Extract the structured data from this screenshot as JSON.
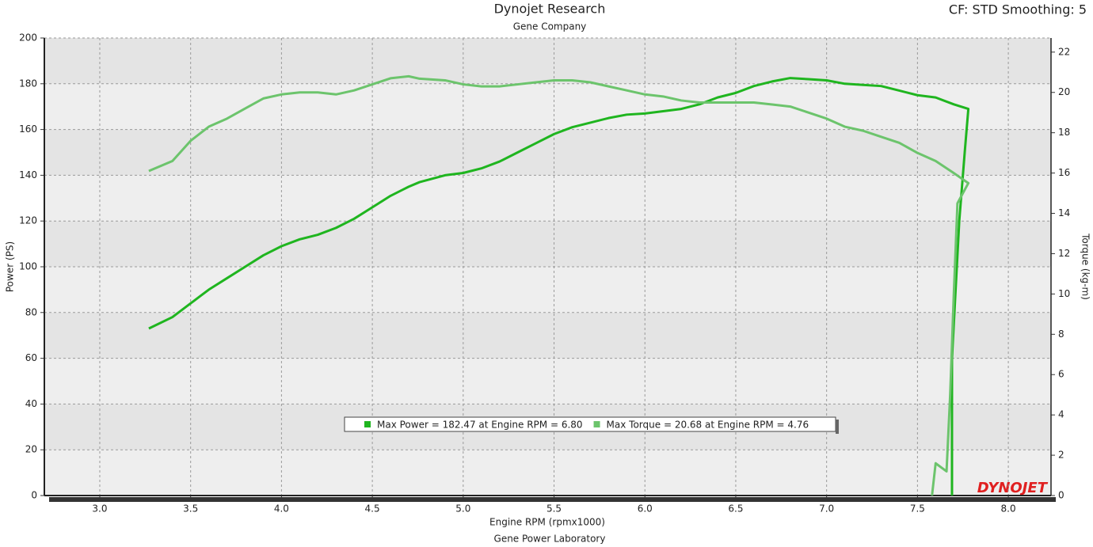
{
  "chart_data": {
    "type": "line",
    "title": "Dynojet Research",
    "subtitle": "Gene Company",
    "corner_text": "CF: STD Smoothing: 5",
    "xlabel": "Engine RPM (rpmx1000)",
    "footer": "Gene Power Laboratory",
    "ylabel": "Power (PS)",
    "y2label": "Torque (kg-m)",
    "logo": "DYNOJET",
    "xlim": [
      2.695,
      8.235
    ],
    "xticks": [
      {
        "value": 3,
        "label": "3.0"
      },
      {
        "value": 3.5,
        "label": "3.5"
      },
      {
        "value": 4,
        "label": "4.0"
      },
      {
        "value": 4.5,
        "label": "4.5"
      },
      {
        "value": 5,
        "label": "5.0"
      },
      {
        "value": 5.5,
        "label": "5.5"
      },
      {
        "value": 6,
        "label": "6.0"
      },
      {
        "value": 6.5,
        "label": "6.5"
      },
      {
        "value": 7,
        "label": "7.0"
      },
      {
        "value": 7.5,
        "label": "7.5"
      },
      {
        "value": 8,
        "label": "8.0"
      }
    ],
    "ylim": [
      0,
      200
    ],
    "yticks": [
      0,
      20,
      40,
      60,
      80,
      100,
      120,
      140,
      160,
      180,
      200
    ],
    "y2lim": [
      0,
      22.7
    ],
    "y2ticks": [
      0,
      2,
      4,
      6,
      8,
      10,
      12,
      14,
      16,
      18,
      20,
      22
    ],
    "grid": true,
    "series": [
      {
        "name": "Max Power = 182.47 at Engine RPM = 6.80",
        "color": "#1fb51f",
        "x": [
          3.27,
          3.4,
          3.5,
          3.6,
          3.7,
          3.8,
          3.9,
          4.0,
          4.1,
          4.2,
          4.3,
          4.4,
          4.5,
          4.6,
          4.7,
          4.76,
          4.9,
          5.0,
          5.1,
          5.2,
          5.3,
          5.4,
          5.5,
          5.6,
          5.7,
          5.8,
          5.9,
          6.0,
          6.1,
          6.2,
          6.3,
          6.4,
          6.5,
          6.6,
          6.7,
          6.8,
          6.9,
          7.0,
          7.1,
          7.2,
          7.3,
          7.4,
          7.5,
          7.6,
          7.7,
          7.78,
          7.76,
          7.73,
          7.71,
          7.69,
          7.69,
          7.69
        ],
        "values": [
          73,
          78,
          84,
          90,
          95,
          100,
          105,
          109,
          112,
          114,
          117,
          121,
          126,
          131,
          135,
          137,
          140,
          141,
          143,
          146,
          150,
          154,
          158,
          161,
          163,
          165,
          166.5,
          167,
          168,
          169,
          171,
          174,
          176,
          179,
          181,
          182.5,
          182,
          181.5,
          180,
          179.5,
          179,
          177,
          175,
          174,
          171,
          169,
          150,
          120,
          90,
          60,
          30,
          0
        ]
      },
      {
        "name": "Max Torque = 20.68 at Engine RPM = 4.76",
        "color": "#6cc46c",
        "axis": "y2",
        "x": [
          3.27,
          3.4,
          3.5,
          3.6,
          3.7,
          3.8,
          3.9,
          4.0,
          4.1,
          4.2,
          4.3,
          4.4,
          4.5,
          4.6,
          4.7,
          4.76,
          4.9,
          5.0,
          5.1,
          5.2,
          5.3,
          5.4,
          5.5,
          5.6,
          5.7,
          5.8,
          5.9,
          6.0,
          6.1,
          6.2,
          6.3,
          6.4,
          6.5,
          6.6,
          6.7,
          6.8,
          6.9,
          7.0,
          7.1,
          7.2,
          7.3,
          7.4,
          7.5,
          7.6,
          7.7,
          7.78,
          7.72,
          7.7,
          7.68,
          7.66,
          7.6,
          7.58
        ],
        "values": [
          16.1,
          16.6,
          17.6,
          18.3,
          18.7,
          19.2,
          19.7,
          19.9,
          20.0,
          20.0,
          19.9,
          20.1,
          20.4,
          20.7,
          20.8,
          20.68,
          20.6,
          20.4,
          20.3,
          20.3,
          20.4,
          20.5,
          20.6,
          20.6,
          20.5,
          20.3,
          20.1,
          19.9,
          19.8,
          19.6,
          19.5,
          19.5,
          19.5,
          19.5,
          19.4,
          19.3,
          19.0,
          18.7,
          18.3,
          18.1,
          17.8,
          17.5,
          17.0,
          16.6,
          16.0,
          15.5,
          14.5,
          10,
          5,
          1.2,
          1.6,
          0
        ]
      }
    ]
  }
}
